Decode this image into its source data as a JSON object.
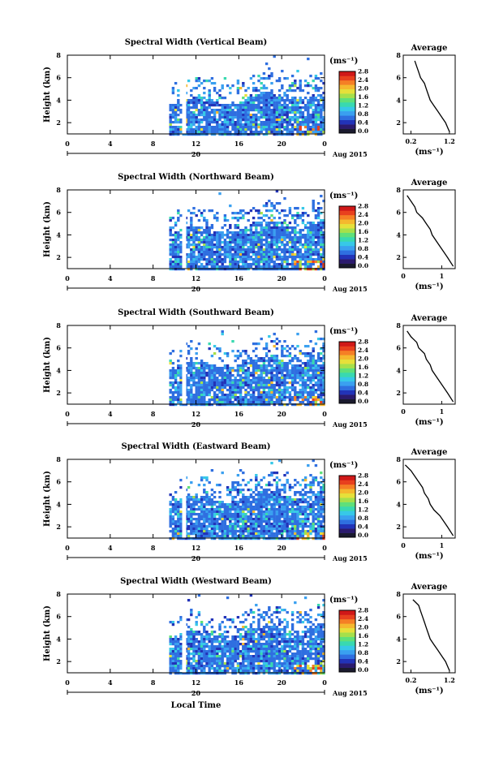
{
  "figure": {
    "y_axis_label": "Height (km)",
    "x_axis_label": "Local Time",
    "date_label": "Aug 2015",
    "day_label": "20",
    "colorbar_unit": "(ms⁻¹)",
    "avg_title": "Average",
    "avg_xlabel": "(ms⁻¹)",
    "colorbar_ticks": [
      "2.8",
      "2.4",
      "2.0",
      "1.6",
      "1.2",
      "0.8",
      "0.4",
      "0.0"
    ],
    "colorbar_colors": [
      "#1a1a2e",
      "#2b1a6e",
      "#2233b8",
      "#2f6fe0",
      "#3aa0f0",
      "#37c8e8",
      "#39d9b0",
      "#5fe07a",
      "#a6e04a",
      "#e6e03a",
      "#f5b82e",
      "#f57f25",
      "#e8401e",
      "#d01818"
    ]
  },
  "panels": [
    {
      "title": "Spectral Width (Vertical Beam)",
      "avg_xticks": [
        "0.2",
        "1.2"
      ]
    },
    {
      "title": "Spectral Width (Northward Beam)",
      "avg_xticks": [
        "0",
        "1"
      ]
    },
    {
      "title": "Spectral Width (Southward Beam)",
      "avg_xticks": [
        "0",
        "1"
      ]
    },
    {
      "title": "Spectral Width (Eastward Beam)",
      "avg_xticks": [
        "0",
        "1"
      ]
    },
    {
      "title": "Spectral Width (Westward Beam)",
      "avg_xticks": [
        "0.2",
        "1.2"
      ]
    }
  ],
  "chart_data": {
    "type": "heatmap",
    "x_ticks": [
      "0",
      "4",
      "8",
      "12",
      "16",
      "20",
      "0"
    ],
    "x_range_hours": [
      0,
      24
    ],
    "y_ticks": [
      "8",
      "6",
      "4",
      "2"
    ],
    "y_range_km": [
      1,
      8
    ],
    "colorbar_range": [
      0.0,
      2.8
    ],
    "data_start_hour": 9.5,
    "average_profiles": [
      {
        "name": "Vertical",
        "x": [
          0.3,
          0.35,
          0.4,
          0.45,
          0.55,
          0.6,
          0.65,
          0.7,
          0.8,
          0.9,
          1.0,
          1.1,
          1.2
        ],
        "height": [
          7.5,
          7.0,
          6.5,
          6.0,
          5.5,
          5.0,
          4.5,
          4.0,
          3.5,
          3.0,
          2.5,
          2.0,
          1.2
        ]
      },
      {
        "name": "Northward",
        "x": [
          0.1,
          0.2,
          0.3,
          0.35,
          0.5,
          0.6,
          0.7,
          0.75,
          0.85,
          0.95,
          1.05,
          1.15,
          1.3
        ],
        "height": [
          7.5,
          7.0,
          6.5,
          6.0,
          5.5,
          5.0,
          4.5,
          4.0,
          3.5,
          3.0,
          2.5,
          2.0,
          1.2
        ]
      },
      {
        "name": "Southward",
        "x": [
          0.1,
          0.2,
          0.35,
          0.4,
          0.55,
          0.6,
          0.7,
          0.75,
          0.85,
          0.95,
          1.05,
          1.15,
          1.3
        ],
        "height": [
          7.5,
          7.0,
          6.5,
          6.0,
          5.5,
          5.0,
          4.5,
          4.0,
          3.5,
          3.0,
          2.5,
          2.0,
          1.2
        ]
      },
      {
        "name": "Eastward",
        "x": [
          0.05,
          0.2,
          0.3,
          0.4,
          0.5,
          0.55,
          0.65,
          0.7,
          0.8,
          0.95,
          1.05,
          1.15,
          1.3
        ],
        "height": [
          7.5,
          7.0,
          6.5,
          6.0,
          5.5,
          5.0,
          4.5,
          4.0,
          3.5,
          3.0,
          2.5,
          2.0,
          1.2
        ]
      },
      {
        "name": "Westward",
        "x": [
          0.25,
          0.4,
          0.45,
          0.5,
          0.55,
          0.6,
          0.65,
          0.7,
          0.8,
          0.9,
          1.0,
          1.1,
          1.2
        ],
        "height": [
          7.5,
          7.0,
          6.5,
          6.0,
          5.5,
          5.0,
          4.5,
          4.0,
          3.5,
          3.0,
          2.5,
          2.0,
          1.2
        ]
      }
    ]
  }
}
